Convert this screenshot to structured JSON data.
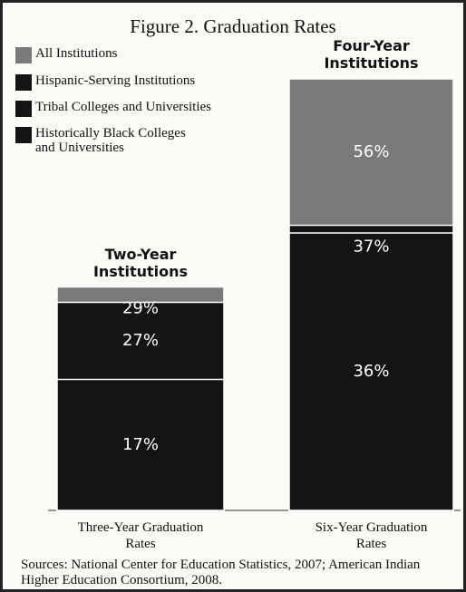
{
  "chart_data": {
    "type": "bar",
    "title": "Figure 2. Graduation Rates",
    "categories": [
      "Three-Year Graduation Rates",
      "Six-Year Graduation Rates"
    ],
    "annotations": [
      "Two-Year Institutions",
      "Four-Year Institutions"
    ],
    "series": [
      {
        "name": "All Institutions",
        "color": "#7a7a7a",
        "values": [
          29,
          56
        ],
        "value_labels": [
          "29%",
          "56%"
        ]
      },
      {
        "name": "Hispanic-Serving Institutions",
        "color": "#141414",
        "values": [
          27,
          37
        ],
        "value_labels": [
          "27%",
          "37%"
        ]
      },
      {
        "name": "Tribal Colleges and Universities",
        "color": "#141414",
        "values": [
          17,
          36
        ],
        "value_labels": [
          "17%",
          "36%"
        ]
      },
      {
        "name": "Historically Black Colleges and Universities",
        "color": "#141414",
        "values": [
          null,
          null
        ]
      }
    ],
    "ylim": [
      0,
      60
    ],
    "source": "Sources: National Center for Education Statistics, 2007; American Indian Higher Education Consortium, 2008."
  }
}
